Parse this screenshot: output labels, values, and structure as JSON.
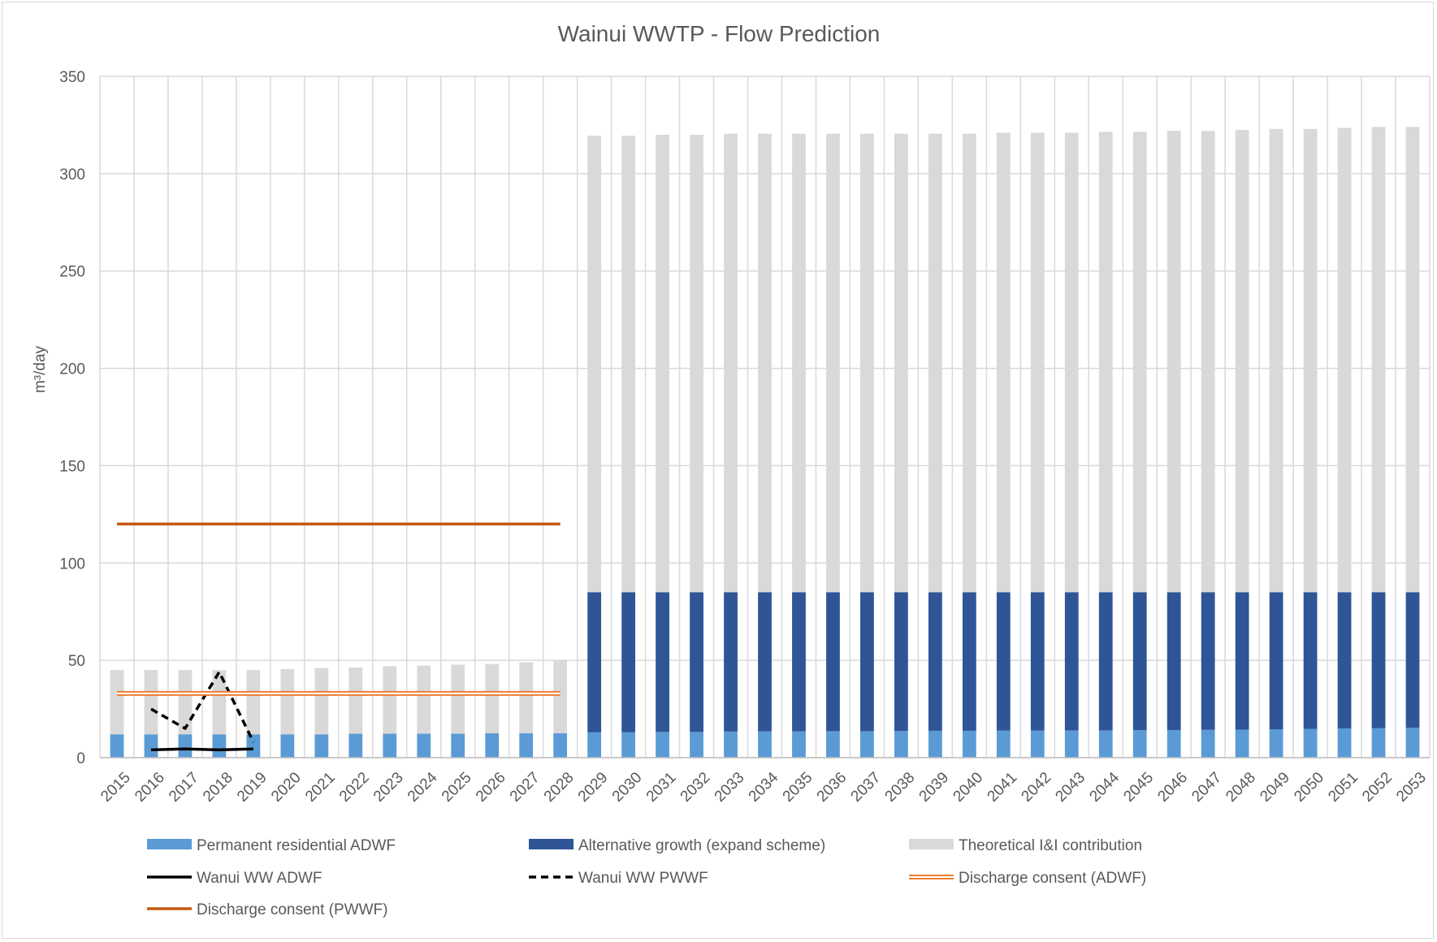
{
  "chart_data": {
    "type": "bar",
    "stacked": true,
    "title": "Wainui WWTP - Flow Prediction",
    "xlabel": "",
    "ylabel": "m³/day",
    "ylim": [
      0,
      350
    ],
    "yticks": [
      0,
      50,
      100,
      150,
      200,
      250,
      300,
      350
    ],
    "grid": true,
    "legend_position": "bottom",
    "categories": [
      "2015",
      "2016",
      "2017",
      "2018",
      "2019",
      "2020",
      "2021",
      "2022",
      "2023",
      "2024",
      "2025",
      "2026",
      "2027",
      "2028",
      "2029",
      "2030",
      "2031",
      "2032",
      "2033",
      "2034",
      "2035",
      "2036",
      "2037",
      "2038",
      "2039",
      "2040",
      "2041",
      "2042",
      "2043",
      "2044",
      "2045",
      "2046",
      "2047",
      "2048",
      "2049",
      "2050",
      "2051",
      "2052",
      "2053"
    ],
    "series": [
      {
        "name": "Permanent residential ADWF",
        "kind": "bar",
        "color": "#5b9bd5",
        "values": [
          12,
          12,
          12,
          12,
          12,
          12,
          12,
          12.3,
          12.3,
          12.3,
          12.3,
          12.6,
          12.6,
          12.6,
          13,
          13,
          13.2,
          13.2,
          13.4,
          13.5,
          13.5,
          13.6,
          13.6,
          13.7,
          13.8,
          13.8,
          13.9,
          13.9,
          14,
          14,
          14.1,
          14.2,
          14.3,
          14.4,
          14.6,
          14.8,
          15,
          15.1,
          15.3
        ]
      },
      {
        "name": "Alternative growth (expand scheme)",
        "kind": "bar",
        "color": "#2f5597",
        "values": [
          0,
          0,
          0,
          0,
          0,
          0,
          0,
          0,
          0,
          0,
          0,
          0,
          0,
          0,
          72,
          72,
          71.8,
          71.8,
          71.6,
          71.5,
          71.5,
          71.4,
          71.4,
          71.3,
          71.2,
          71.2,
          71.1,
          71.1,
          71,
          71,
          70.9,
          70.8,
          70.7,
          70.6,
          70.4,
          70.2,
          70,
          69.9,
          69.7
        ]
      },
      {
        "name": "Theoretical I&I contribution",
        "kind": "bar",
        "color": "#d9d9d9",
        "values": [
          33,
          33,
          33,
          33,
          33,
          33.5,
          34,
          34,
          34.7,
          35,
          35.5,
          35.5,
          36.4,
          37.4,
          234.5,
          234.5,
          235,
          235,
          235.5,
          235.5,
          235.5,
          235.5,
          235.5,
          235.5,
          235.5,
          235.5,
          236,
          236,
          236,
          236.5,
          236.5,
          237,
          237,
          237.5,
          238,
          238,
          238.5,
          239,
          239
        ]
      },
      {
        "name": "Wanui WW ADWF",
        "kind": "line",
        "color": "#000000",
        "dash": "solid",
        "values": [
          null,
          4,
          4.5,
          4,
          4.5,
          null,
          null,
          null,
          null,
          null,
          null,
          null,
          null,
          null,
          null,
          null,
          null,
          null,
          null,
          null,
          null,
          null,
          null,
          null,
          null,
          null,
          null,
          null,
          null,
          null,
          null,
          null,
          null,
          null,
          null,
          null,
          null,
          null,
          null
        ]
      },
      {
        "name": "Wanui WW PWWF",
        "kind": "line",
        "color": "#000000",
        "dash": "dashed",
        "values": [
          null,
          25,
          15,
          44,
          8,
          null,
          null,
          null,
          null,
          null,
          null,
          null,
          null,
          null,
          null,
          null,
          null,
          null,
          null,
          null,
          null,
          null,
          null,
          null,
          null,
          null,
          null,
          null,
          null,
          null,
          null,
          null,
          null,
          null,
          null,
          null,
          null,
          null,
          null
        ]
      },
      {
        "name": "Discharge consent (ADWF)",
        "kind": "line",
        "color": "#ed7d31",
        "dash": "double",
        "values": [
          33,
          33,
          33,
          33,
          33,
          33,
          33,
          33,
          33,
          33,
          33,
          33,
          33,
          33,
          null,
          null,
          null,
          null,
          null,
          null,
          null,
          null,
          null,
          null,
          null,
          null,
          null,
          null,
          null,
          null,
          null,
          null,
          null,
          null,
          null,
          null,
          null,
          null,
          null
        ]
      },
      {
        "name": "Discharge consent (PWWF)",
        "kind": "line",
        "color": "#c55a11",
        "dash": "solid",
        "values": [
          120,
          120,
          120,
          120,
          120,
          120,
          120,
          120,
          120,
          120,
          120,
          120,
          120,
          120,
          null,
          null,
          null,
          null,
          null,
          null,
          null,
          null,
          null,
          null,
          null,
          null,
          null,
          null,
          null,
          null,
          null,
          null,
          null,
          null,
          null,
          null,
          null,
          null,
          null
        ]
      }
    ]
  }
}
